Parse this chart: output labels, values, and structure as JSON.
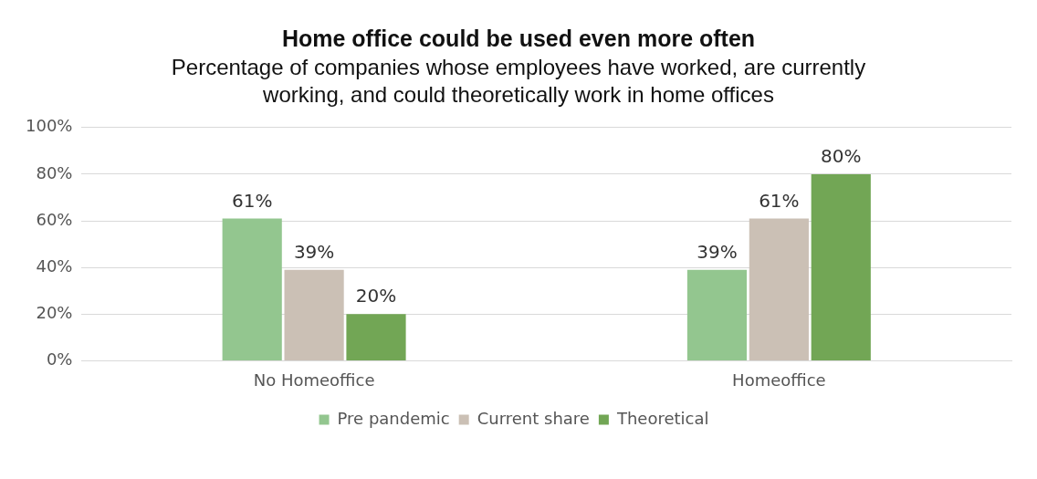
{
  "chart_data": {
    "type": "bar",
    "title": "Home office could be used even more often",
    "subtitle": "Percentage of companies whose employees have worked, are currently working, and could theoretically work in home offices",
    "categories": [
      "No Homeoffice",
      "Homeoffice"
    ],
    "series": [
      {
        "name": "Pre pandemic",
        "color": "#93c68f",
        "values": [
          61,
          39
        ],
        "value_labels": [
          "61%",
          "39%"
        ]
      },
      {
        "name": "Current share",
        "color": "#cbc0b5",
        "values": [
          39,
          61
        ],
        "value_labels": [
          "39%",
          "61%"
        ]
      },
      {
        "name": "Theoretical",
        "color": "#72a655",
        "values": [
          20,
          80
        ],
        "value_labels": [
          "20%",
          "80%"
        ]
      }
    ],
    "ylim": [
      0,
      100
    ],
    "yticks": [
      {
        "value": 0,
        "label": "0%"
      },
      {
        "value": 20,
        "label": "20%"
      },
      {
        "value": 40,
        "label": "40%"
      },
      {
        "value": 60,
        "label": "60%"
      },
      {
        "value": 80,
        "label": "80%"
      },
      {
        "value": 100,
        "label": "100%"
      }
    ],
    "grid": "y",
    "legend": "bottom"
  }
}
